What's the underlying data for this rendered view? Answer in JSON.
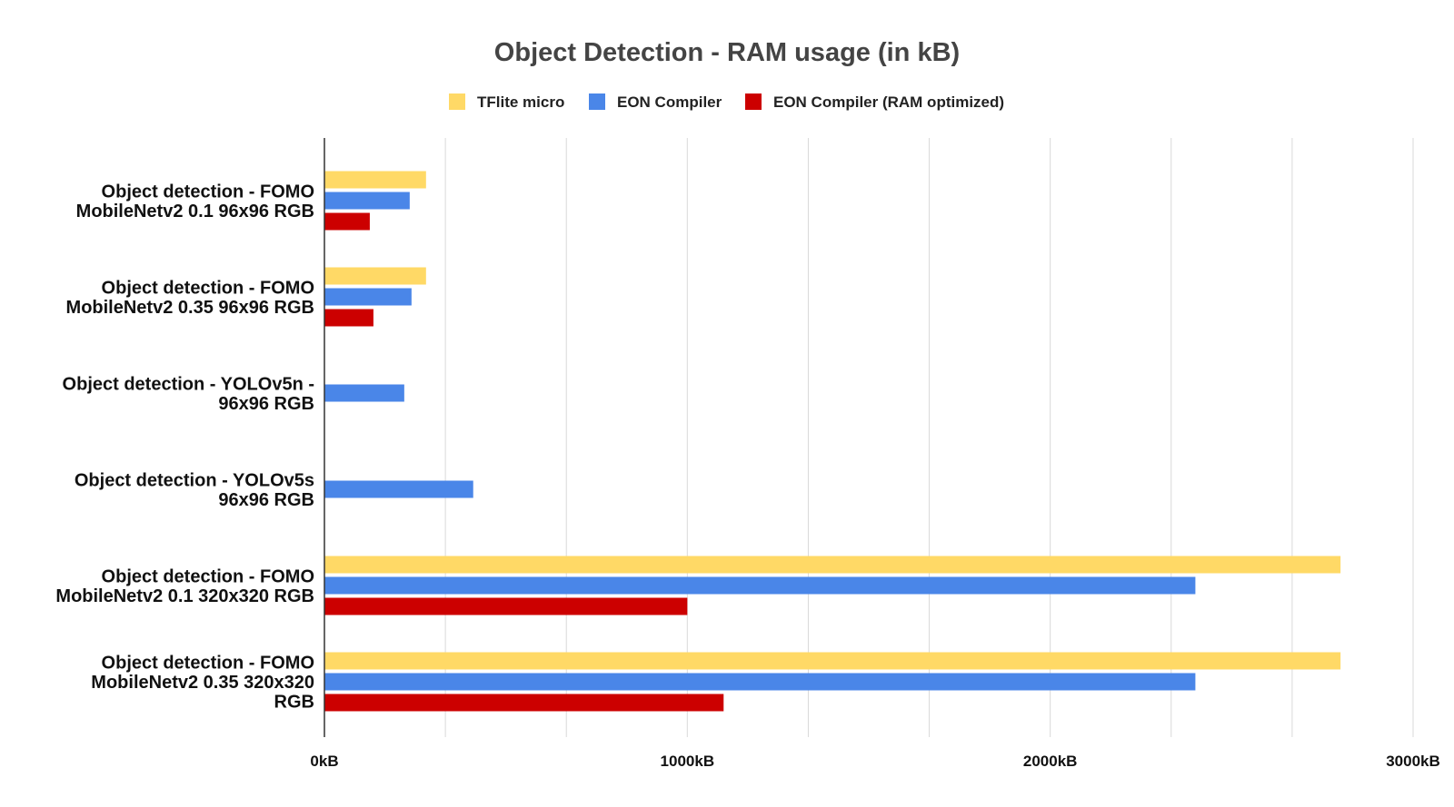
{
  "chart_data": {
    "type": "bar",
    "orientation": "horizontal",
    "title": "Object Detection - RAM usage (in kB)",
    "legend_position": "top-center",
    "grid": true,
    "xlim": [
      0,
      3000
    ],
    "x_unit": "kB",
    "x_ticks": [
      {
        "value": 0,
        "label": "0kB"
      },
      {
        "value": 1000,
        "label": "1000kB"
      },
      {
        "value": 2000,
        "label": "2000kB"
      },
      {
        "value": 3000,
        "label": "3000kB"
      }
    ],
    "categories": [
      [
        "Object detection - FOMO",
        "MobileNetv2 0.1 96x96 RGB"
      ],
      [
        "Object detection - FOMO",
        "MobileNetv2 0.35 96x96 RGB"
      ],
      [
        "Object detection - YOLOv5n -",
        "96x96 RGB"
      ],
      [
        "Object detection - YOLOv5s",
        "96x96 RGB"
      ],
      [
        "Object detection - FOMO",
        "MobileNetv2 0.1 320x320 RGB"
      ],
      [
        "Object detection - FOMO",
        "MobileNetv2 0.35 320x320",
        "RGB"
      ]
    ],
    "series": [
      {
        "name": "TFlite micro",
        "color": "#FFD966",
        "values": [
          280,
          280,
          null,
          null,
          2800,
          2800
        ]
      },
      {
        "name": "EON Compiler",
        "color": "#4A86E8",
        "values": [
          235,
          240,
          220,
          410,
          2400,
          2400
        ]
      },
      {
        "name": "EON Compiler (RAM optimized)",
        "color": "#CC0000",
        "values": [
          125,
          135,
          null,
          null,
          1000,
          1100
        ]
      }
    ]
  }
}
